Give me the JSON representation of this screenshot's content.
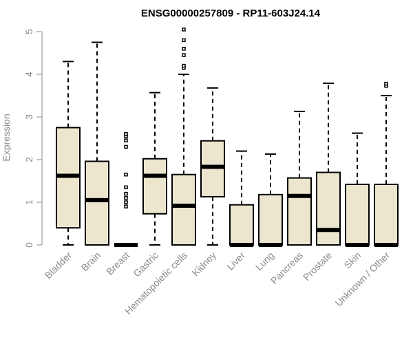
{
  "chart_data": {
    "type": "boxplot",
    "title": "ENSG00000257809 - RP11-603J24.14",
    "ylabel": "Expression",
    "xlabel": "",
    "ylim": [
      0,
      5.1
    ],
    "yticks": [
      0,
      1,
      2,
      3,
      4,
      5
    ],
    "box_color": "#ede6cf",
    "categories": [
      "Bladder",
      "Brain",
      "Breast",
      "Gastric",
      "Hematopoietic cells",
      "Kidney",
      "Liver",
      "Lung",
      "Pancreas",
      "Prostate",
      "Skin",
      "Unknown / Other"
    ],
    "boxes": [
      {
        "min": 0,
        "q1": 0.4,
        "median": 1.62,
        "q3": 2.75,
        "max": 4.3,
        "outliers": []
      },
      {
        "min": 0,
        "q1": 0,
        "median": 1.05,
        "q3": 1.96,
        "max": 4.75,
        "outliers": []
      },
      {
        "min": 0,
        "q1": 0,
        "median": 0,
        "q3": 0,
        "max": 0,
        "outliers": [
          0.9,
          1.0,
          1.1,
          1.2,
          1.35,
          1.65,
          2.3,
          2.45,
          2.55,
          2.6
        ]
      },
      {
        "min": 0,
        "q1": 0.73,
        "median": 1.62,
        "q3": 2.02,
        "max": 3.57,
        "outliers": []
      },
      {
        "min": 0,
        "q1": 0,
        "median": 0.92,
        "q3": 1.65,
        "max": 4.0,
        "outliers": [
          4.15,
          4.2,
          4.45,
          4.6,
          4.8,
          5.05
        ]
      },
      {
        "min": 0,
        "q1": 1.13,
        "median": 1.83,
        "q3": 2.44,
        "max": 3.68,
        "outliers": []
      },
      {
        "min": 0,
        "q1": 0,
        "median": 0,
        "q3": 0.94,
        "max": 2.2,
        "outliers": []
      },
      {
        "min": 0,
        "q1": 0,
        "median": 0,
        "q3": 1.18,
        "max": 2.13,
        "outliers": []
      },
      {
        "min": 0,
        "q1": 0,
        "median": 1.15,
        "q3": 1.57,
        "max": 3.13,
        "outliers": []
      },
      {
        "min": 0,
        "q1": 0,
        "median": 0.35,
        "q3": 1.7,
        "max": 3.79,
        "outliers": []
      },
      {
        "min": 0,
        "q1": 0,
        "median": 0,
        "q3": 1.42,
        "max": 2.62,
        "outliers": []
      },
      {
        "min": 0,
        "q1": 0,
        "median": 0,
        "q3": 1.42,
        "max": 3.5,
        "outliers": [
          3.73,
          3.78
        ]
      }
    ]
  }
}
